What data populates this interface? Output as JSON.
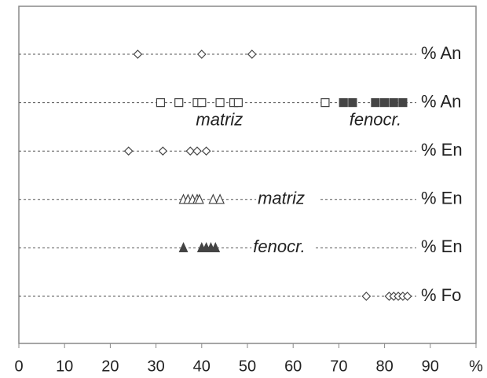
{
  "chart_data": {
    "type": "strip",
    "xlim": [
      0,
      100
    ],
    "xticks": [
      0,
      10,
      20,
      30,
      40,
      50,
      60,
      70,
      80,
      90,
      {
        "value": 100,
        "label": "%"
      }
    ],
    "color": "#444",
    "rows": [
      {
        "label": "% An",
        "groups": [
          {
            "marker": "diamond",
            "filled": false,
            "x": [
              26,
              40,
              51
            ]
          }
        ]
      },
      {
        "label": "% An",
        "groups": [
          {
            "marker": "square",
            "filled": false,
            "x": [
              31,
              35,
              39,
              40,
              44,
              47,
              48,
              67
            ],
            "annotation": "matriz"
          },
          {
            "marker": "square",
            "filled": true,
            "x": [
              71,
              73,
              78,
              80,
              82,
              84
            ],
            "annotation": "fenocr."
          }
        ]
      },
      {
        "label": "% En",
        "groups": [
          {
            "marker": "diamond",
            "filled": false,
            "x": [
              24,
              31.5,
              37.5,
              39,
              41
            ]
          }
        ]
      },
      {
        "label": "% En",
        "groups": [
          {
            "marker": "triangle",
            "filled": false,
            "x": [
              36,
              37,
              38,
              39,
              39.5,
              42.5,
              44
            ],
            "annotation": "matriz"
          }
        ]
      },
      {
        "label": "% En",
        "groups": [
          {
            "marker": "triangle",
            "filled": true,
            "x": [
              36,
              40,
              41,
              42,
              43
            ],
            "annotation": "fenocr."
          }
        ]
      },
      {
        "label": "% Fo",
        "groups": [
          {
            "marker": "diamond",
            "filled": false,
            "x": [
              76,
              81,
              82,
              83,
              84,
              85
            ]
          }
        ]
      }
    ]
  }
}
